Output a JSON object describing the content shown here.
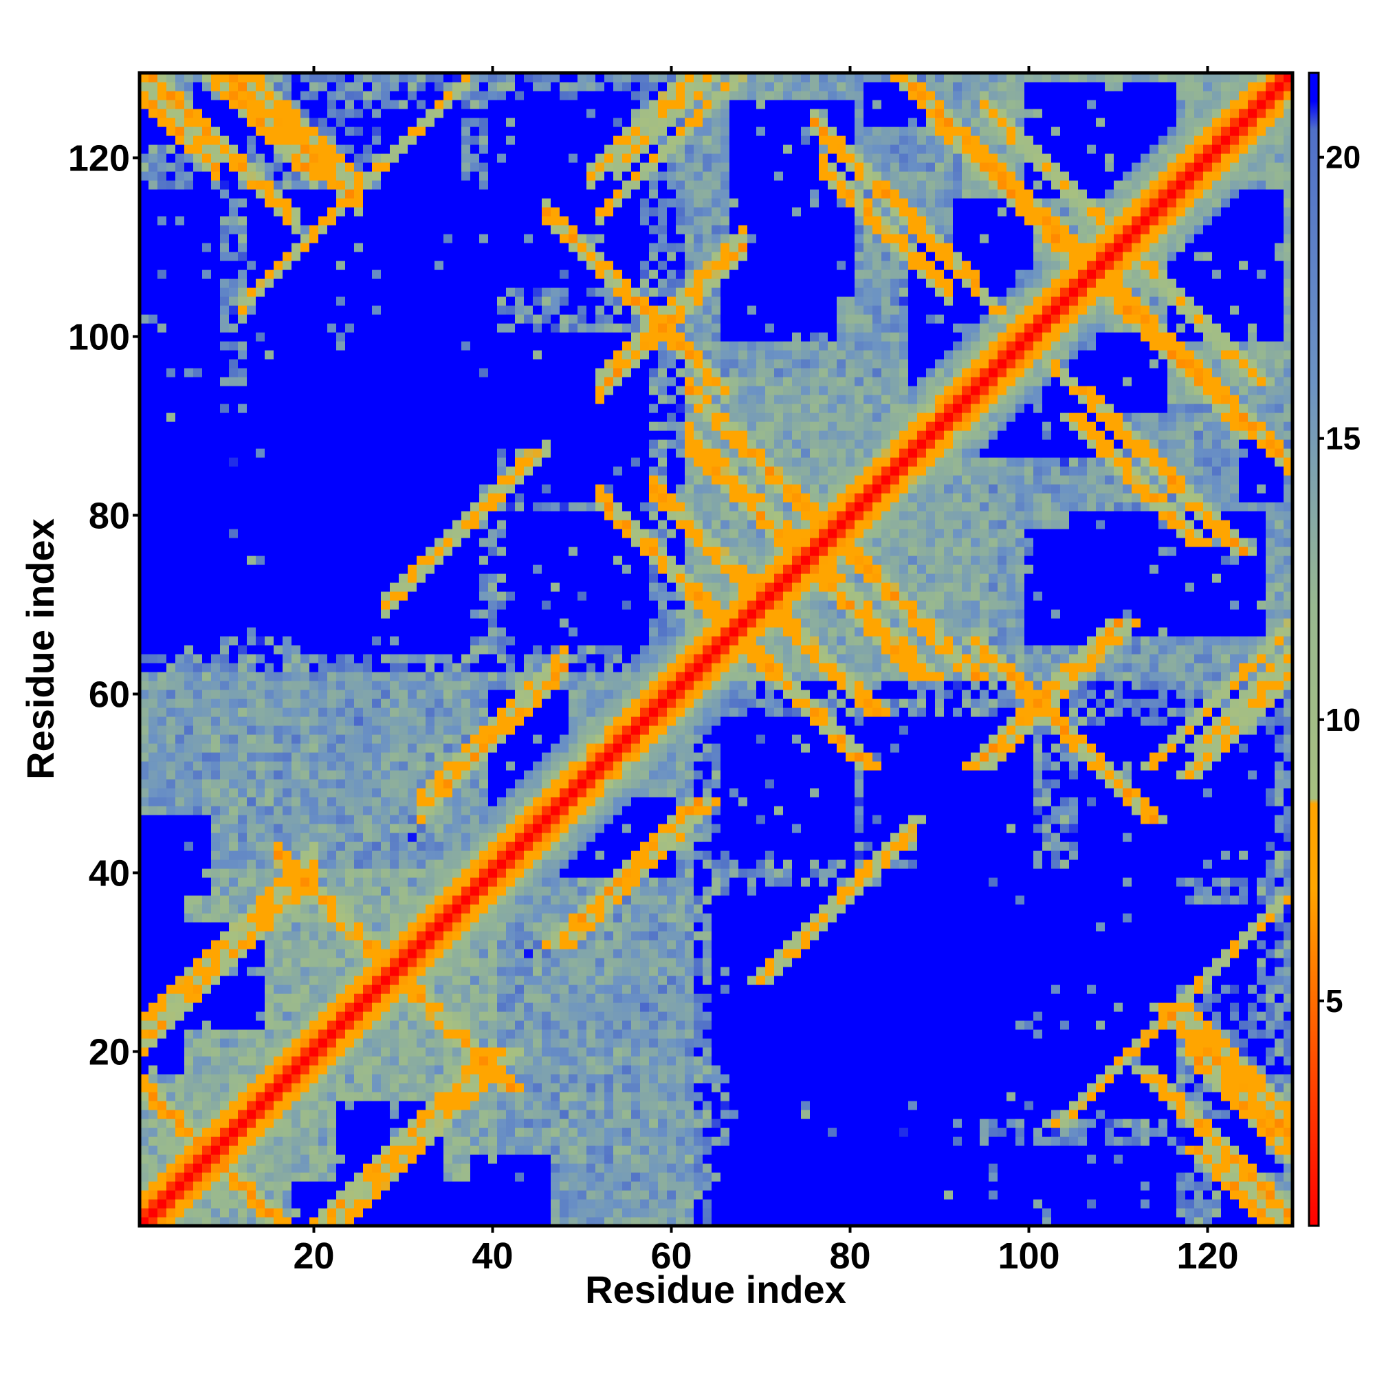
{
  "chart_data": {
    "type": "heatmap",
    "title": "",
    "xlabel": "Residue index",
    "ylabel": "Residue index",
    "n_residues": 129,
    "xlim": [
      1,
      129
    ],
    "ylim": [
      1,
      129
    ],
    "x_ticks": [
      20,
      40,
      60,
      80,
      100,
      120
    ],
    "y_ticks": [
      20,
      40,
      60,
      80,
      100,
      120
    ],
    "colorbar": {
      "ticks": [
        5,
        10,
        15,
        20
      ],
      "range": [
        1,
        21.5
      ],
      "stops": [
        {
          "value": 1,
          "color": "#ff0000"
        },
        {
          "value": 4,
          "color": "#ff5000"
        },
        {
          "value": 7,
          "color": "#ffa500"
        },
        {
          "value": 8.5,
          "color": "#ffa500"
        },
        {
          "value": 8.6,
          "color": "#a8c080"
        },
        {
          "value": 12,
          "color": "#98b890"
        },
        {
          "value": 16,
          "color": "#6c93c4"
        },
        {
          "value": 20.5,
          "color": "#5070c8"
        },
        {
          "value": 21,
          "color": "#0000ff"
        }
      ]
    },
    "colors": {
      "red": "#ff0000",
      "orange": "#ffa500",
      "sage": "#a8c080",
      "steel": "#6c93c4",
      "blue": "#0000ff"
    },
    "domains": [
      {
        "range": [
          1,
          62
        ],
        "value": 13
      },
      {
        "range": [
          62,
          129
        ],
        "value": 13
      },
      {
        "range": [
          1,
          40
        ],
        "value": 11
      },
      {
        "range": [
          40,
          62
        ],
        "value": 14
      },
      {
        "range": [
          62,
          95
        ],
        "value": 12
      },
      {
        "range": [
          95,
          129
        ],
        "value": 12
      }
    ],
    "contacts": [
      {
        "i": 10,
        "j": 30,
        "value": 7,
        "width": 5,
        "direction": "parallel"
      },
      {
        "i": 3,
        "j": 125,
        "value": 7,
        "width": 6,
        "direction": "anti"
      },
      {
        "i": 5,
        "j": 12,
        "value": 7,
        "width": 3,
        "direction": "anti"
      },
      {
        "i": 15,
        "j": 125,
        "value": 7,
        "width": 5,
        "direction": "anti"
      },
      {
        "i": 60,
        "j": 125,
        "value": 8,
        "width": 3,
        "direction": "parallel"
      },
      {
        "i": 22,
        "j": 36,
        "value": 7,
        "width": 3,
        "direction": "anti"
      },
      {
        "i": 40,
        "j": 55,
        "value": 7,
        "width": 4,
        "direction": "parallel"
      },
      {
        "i": 36,
        "j": 78,
        "value": 8,
        "width": 3,
        "direction": "parallel"
      },
      {
        "i": 40,
        "j": 82,
        "value": 8,
        "width": 2,
        "direction": "parallel"
      },
      {
        "i": 62,
        "j": 72,
        "value": 7,
        "width": 3,
        "direction": "anti"
      },
      {
        "i": 66,
        "j": 75,
        "value": 7,
        "width": 3,
        "direction": "anti"
      },
      {
        "i": 70,
        "j": 80,
        "value": 7,
        "width": 4,
        "direction": "anti"
      },
      {
        "i": 72,
        "j": 84,
        "value": 7,
        "width": 3,
        "direction": "anti"
      },
      {
        "i": 56,
        "j": 104,
        "value": 7,
        "width": 3,
        "direction": "anti"
      },
      {
        "i": 60,
        "j": 102,
        "value": 7,
        "width": 4,
        "direction": "parallel"
      },
      {
        "i": 85,
        "j": 115,
        "value": 7,
        "width": 3,
        "direction": "anti"
      },
      {
        "i": 84,
        "j": 112,
        "value": 7,
        "width": 3,
        "direction": "anti"
      },
      {
        "i": 98,
        "j": 116,
        "value": 7,
        "width": 4,
        "direction": "anti"
      },
      {
        "i": 95,
        "j": 120,
        "value": 7,
        "width": 3,
        "direction": "anti"
      },
      {
        "i": 12,
        "j": 126,
        "value": 7,
        "width": 3,
        "direction": "anti"
      },
      {
        "i": 8,
        "j": 123,
        "value": 7,
        "width": 3,
        "direction": "anti"
      },
      {
        "i": 20,
        "j": 112,
        "value": 8,
        "width": 2,
        "direction": "parallel"
      },
      {
        "i": 28,
        "j": 120,
        "value": 8,
        "width": 2,
        "direction": "parallel"
      },
      {
        "i": 58,
        "j": 125,
        "value": 8,
        "width": 3,
        "direction": "parallel"
      },
      {
        "i": 87,
        "j": 113,
        "value": 8,
        "width": 2,
        "direction": "anti"
      },
      {
        "i": 60,
        "j": 122,
        "value": 8,
        "width": 2,
        "direction": "parallel"
      },
      {
        "i": 102,
        "j": 119,
        "value": 8,
        "width": 3,
        "direction": "anti"
      }
    ],
    "blue_regions": [
      {
        "x": [
          67,
          94
        ],
        "y": [
          1,
          38
        ]
      },
      {
        "x": [
          95,
          125
        ],
        "y": [
          28,
          36
        ]
      },
      {
        "x": [
          13,
          40
        ],
        "y": [
          80,
          116
        ]
      },
      {
        "x": [
          20,
          37
        ],
        "y": [
          65,
          80
        ]
      },
      {
        "x": [
          40,
          57
        ],
        "y": [
          90,
          100
        ]
      },
      {
        "x": [
          1,
          9
        ],
        "y": [
          65,
          116
        ]
      },
      {
        "x": [
          1,
          5
        ],
        "y": [
          18,
          42
        ]
      },
      {
        "x": [
          66,
          80
        ],
        "y": [
          42,
          57
        ]
      },
      {
        "x": [
          82,
          96
        ],
        "y": [
          42,
          57
        ]
      },
      {
        "x": [
          105,
          126
        ],
        "y": [
          67,
          80
        ]
      },
      {
        "x": [
          116,
          128
        ],
        "y": [
          100,
          116
        ]
      },
      {
        "x": [
          66,
          78
        ],
        "y": [
          100,
          110
        ]
      },
      {
        "x": [
          23,
          34
        ],
        "y": [
          1,
          14
        ]
      },
      {
        "x": [
          38,
          46
        ],
        "y": [
          1,
          8
        ]
      },
      {
        "x": [
          103,
          115
        ],
        "y": [
          92,
          100
        ]
      },
      {
        "x": [
          106,
          126
        ],
        "y": [
          40,
          56
        ]
      },
      {
        "x": [
          87,
          100
        ],
        "y": [
          92,
          110
        ]
      },
      {
        "x": [
          48,
          60
        ],
        "y": [
          40,
          48
        ]
      },
      {
        "x": [
          1,
          12
        ],
        "y": [
          122,
          126
        ]
      },
      {
        "x": [
          82,
          88
        ],
        "y": [
          124,
          128
        ]
      }
    ],
    "noise_seed": 17
  }
}
